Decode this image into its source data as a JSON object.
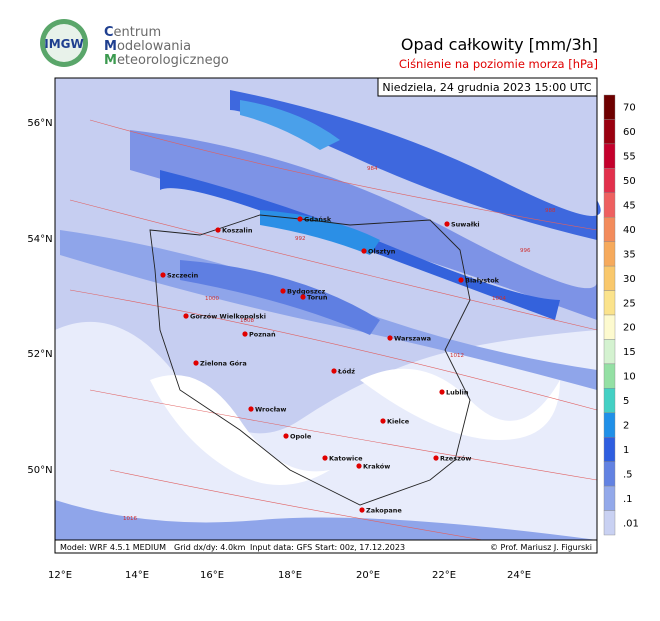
{
  "header": {
    "logo": "IMGW",
    "org": [
      "Centrum",
      "Modelowania",
      "Meteorologicznego"
    ],
    "title": "Opad całkowity [mm/3h]",
    "subtitle": "Ciśnienie na poziomie morza [hPa]",
    "date": "Niedziela, 24 grudnia 2023 15:00 UTC"
  },
  "map": {
    "lat_labels": [
      "56°N",
      "54°N",
      "52°N",
      "50°N"
    ],
    "lon_labels": [
      "12°E",
      "14°E",
      "16°E",
      "18°E",
      "20°E",
      "22°E",
      "24°E"
    ],
    "cities": [
      "Suwałki",
      "Gdańsk",
      "Koszalin",
      "Olsztyn",
      "Szczecin",
      "Białystok",
      "Bydgoszcz",
      "Toruń",
      "Gorzów Wielkopolski",
      "Poznań",
      "Warszawa",
      "Zielona Góra",
      "Łódź",
      "Lublin",
      "Wrocław",
      "Kielce",
      "Opole",
      "Katowice",
      "Kraków",
      "Rzeszów",
      "Zakopane"
    ],
    "isobars": [
      "984",
      "988",
      "992",
      "996",
      "1000",
      "1004",
      "1008",
      "1012",
      "1016"
    ]
  },
  "legend": {
    "items": [
      {
        "label": "70",
        "color": "#6e0000"
      },
      {
        "label": "60",
        "color": "#9a0010"
      },
      {
        "label": "55",
        "color": "#c4002c"
      },
      {
        "label": "50",
        "color": "#e2304c"
      },
      {
        "label": "45",
        "color": "#ee6060"
      },
      {
        "label": "40",
        "color": "#f38c5c"
      },
      {
        "label": "35",
        "color": "#f6aa5c"
      },
      {
        "label": "30",
        "color": "#f9c86c"
      },
      {
        "label": "25",
        "color": "#fbe38c"
      },
      {
        "label": "20",
        "color": "#fdfacf"
      },
      {
        "label": "15",
        "color": "#d4f2d0"
      },
      {
        "label": "10",
        "color": "#94e0a4"
      },
      {
        "label": "5",
        "color": "#44d0c4"
      },
      {
        "label": "2",
        "color": "#2090e8"
      },
      {
        "label": "1",
        "color": "#2e5ee0"
      },
      {
        "label": ".5",
        "color": "#6282e2"
      },
      {
        "label": ".1",
        "color": "#93a9ea"
      },
      {
        "label": ".01",
        "color": "#c9d1f2"
      }
    ]
  },
  "footer": {
    "model": "Model: WRF 4.5.1 MEDIUM",
    "grid": "Grid dx/dy: 4.0km",
    "input": "Input data: GFS",
    "start": "Start: 00z, 17.12.2023",
    "credit": "© Prof. Mariusz J. Figurski"
  }
}
